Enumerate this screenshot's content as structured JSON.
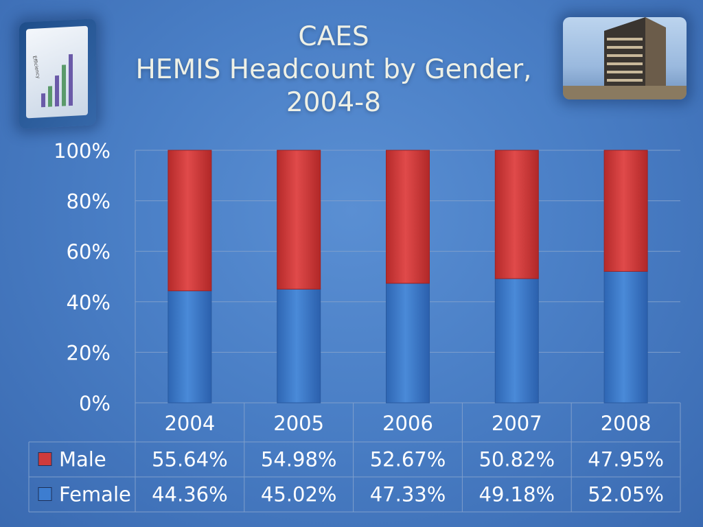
{
  "title": {
    "line1": "CAES",
    "line2": "HEMIS Headcount by Gender,",
    "line3": "2004-8"
  },
  "decor": {
    "left_picture_icon": "bar-chart-screen-icon",
    "left_picture_text": "Efficiency",
    "right_picture_icon": "building-photo-icon"
  },
  "colors": {
    "male": "#cf3b3b",
    "female": "#3d7dd0",
    "text": "#ffffff",
    "grid": "#7f9fcc",
    "table_border": "#7f9fcc"
  },
  "chart_data": {
    "type": "bar",
    "stacked": true,
    "percent_stacked": true,
    "categories": [
      "2004",
      "2005",
      "2006",
      "2007",
      "2008"
    ],
    "series": [
      {
        "name": "Female",
        "values": [
          44.36,
          45.02,
          47.33,
          49.18,
          52.05
        ],
        "labels": [
          "44.36%",
          "45.02%",
          "47.33%",
          "49.18%",
          "52.05%"
        ]
      },
      {
        "name": "Male",
        "values": [
          55.64,
          54.98,
          52.67,
          50.82,
          47.95
        ],
        "labels": [
          "55.64%",
          "54.98%",
          "52.67%",
          "50.82%",
          "47.95%"
        ]
      }
    ],
    "yticks": [
      "0%",
      "20%",
      "40%",
      "60%",
      "80%",
      "100%"
    ],
    "ylim": [
      0,
      100
    ],
    "grid": true,
    "legend": "data-table"
  }
}
